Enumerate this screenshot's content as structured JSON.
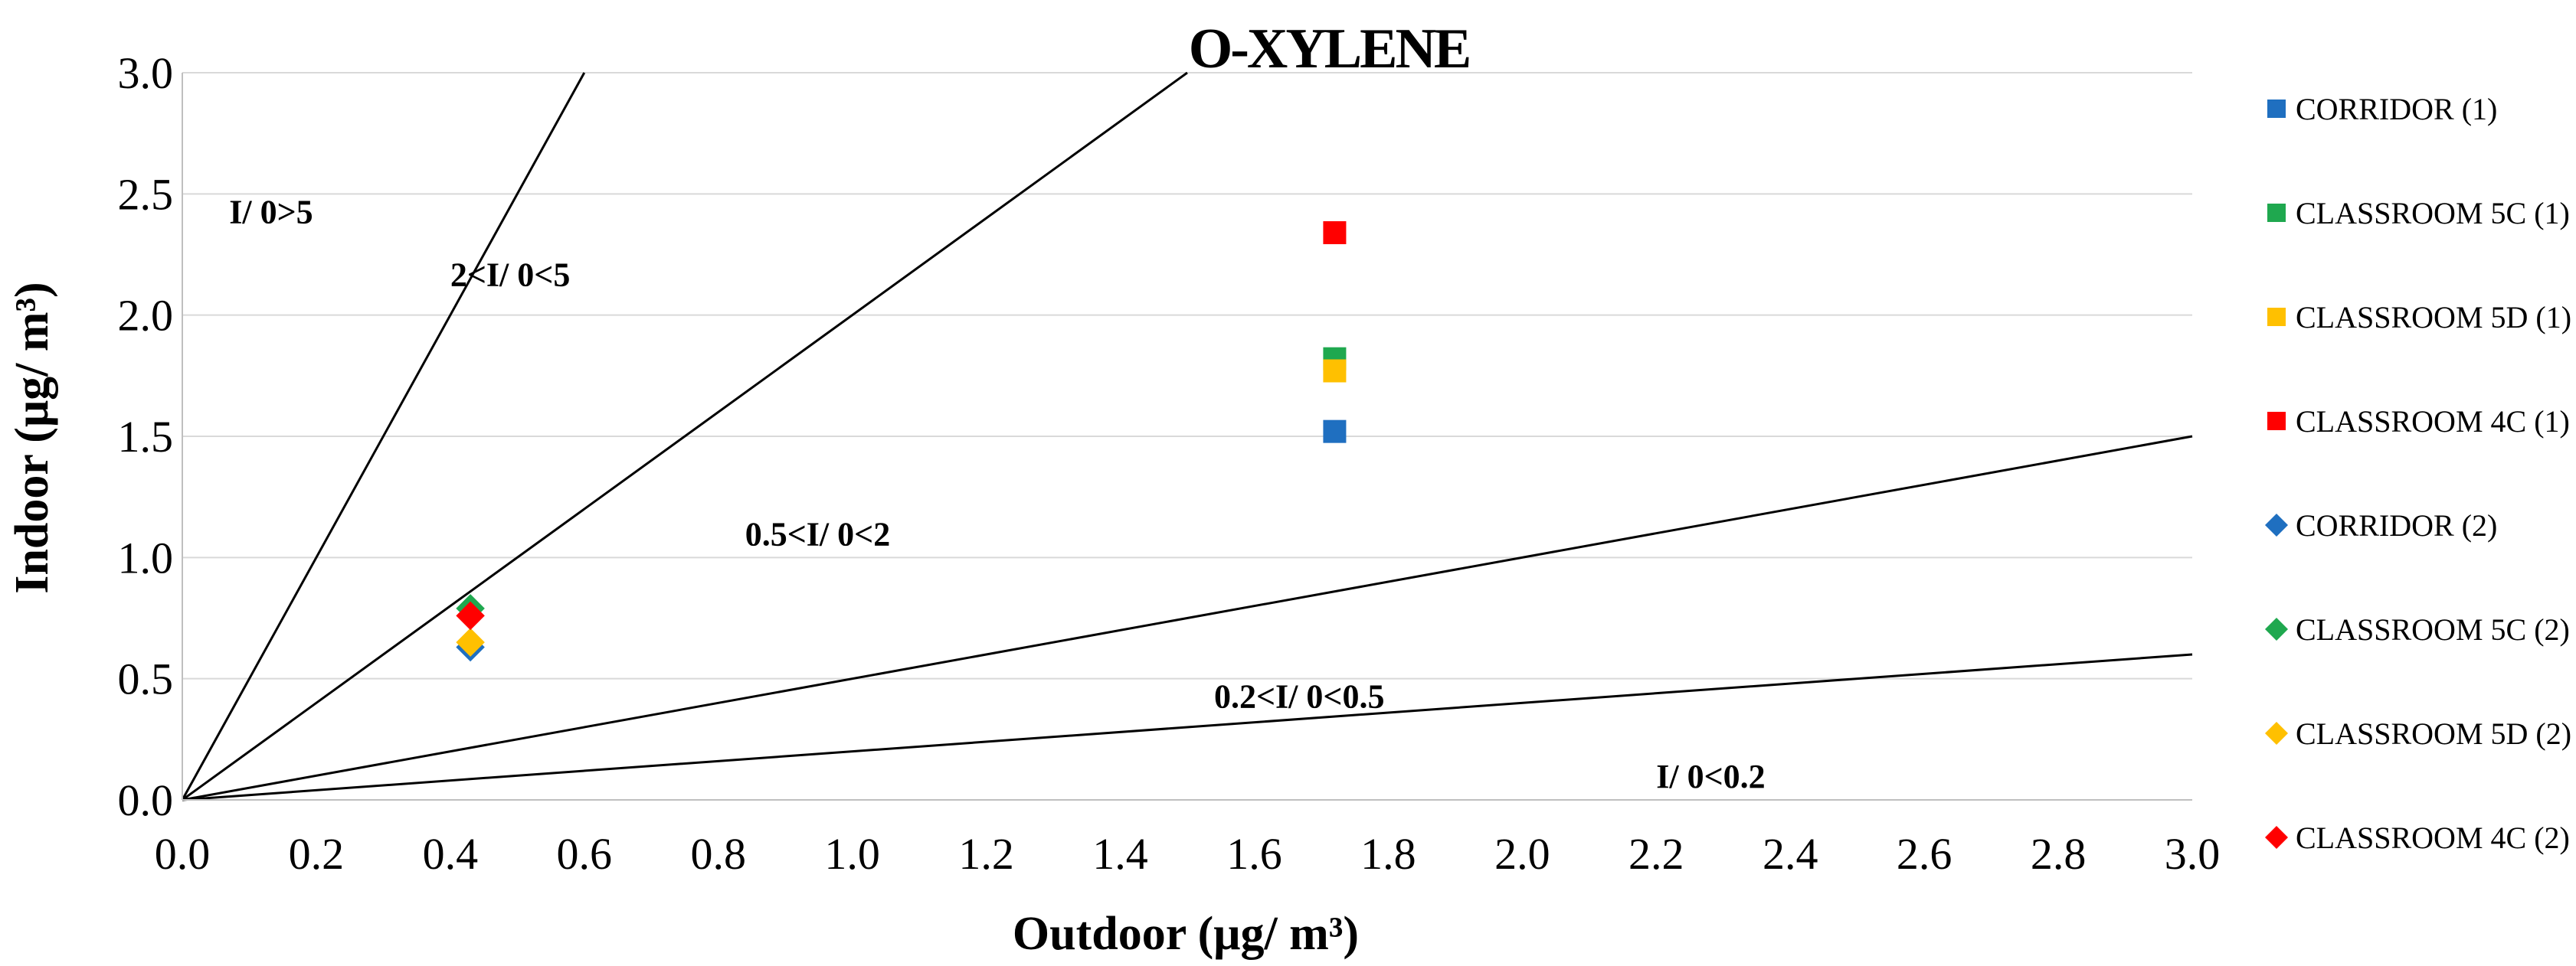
{
  "chart_data": {
    "type": "scatter",
    "title": "O-XYLENE",
    "xlabel": "Outdoor (μg/ m³)",
    "ylabel": "Indoor (μg/ m³)",
    "xlim": [
      0,
      3.0
    ],
    "ylim": [
      0,
      3.0
    ],
    "x_ticks": [
      "0.0",
      "0.2",
      "0.4",
      "0.6",
      "0.8",
      "1.0",
      "1.2",
      "1.4",
      "1.6",
      "1.8",
      "2.0",
      "2.2",
      "2.4",
      "2.6",
      "2.8",
      "3.0"
    ],
    "y_ticks": [
      "0.0",
      "0.5",
      "1.0",
      "1.5",
      "2.0",
      "2.5",
      "3.0"
    ],
    "grid": "horizontal",
    "legend_position": "right",
    "ratio_lines": [
      {
        "name": "ratio-5",
        "slope": 5
      },
      {
        "name": "ratio-2",
        "slope": 2
      },
      {
        "name": "ratio-0.5",
        "slope": 0.5
      },
      {
        "name": "ratio-0.2",
        "slope": 0.2
      }
    ],
    "regions": [
      {
        "label": "I/ 0>5",
        "x": 0.07,
        "y": 2.38
      },
      {
        "label": "2<I/ 0<5",
        "x": 0.4,
        "y": 2.12
      },
      {
        "label": "0.5<I/ 0<2",
        "x": 0.84,
        "y": 1.05
      },
      {
        "label": "0.2<I/ 0<0.5",
        "x": 1.54,
        "y": 0.38
      },
      {
        "label": "I/ 0<0.2",
        "x": 2.2,
        "y": 0.05
      }
    ],
    "series": [
      {
        "name": "CORRIDOR (1)",
        "marker": "square",
        "color": "#1F6FC0",
        "x": 1.72,
        "y": 1.52
      },
      {
        "name": "CLASSROOM 5C (1)",
        "marker": "square",
        "color": "#1FA84F",
        "x": 1.72,
        "y": 1.82
      },
      {
        "name": "CLASSROOM 5D (1)",
        "marker": "square",
        "color": "#FFC000",
        "x": 1.72,
        "y": 1.77
      },
      {
        "name": "CLASSROOM 4C (1)",
        "marker": "square",
        "color": "#FF0000",
        "x": 1.72,
        "y": 2.34
      },
      {
        "name": "CORRIDOR (2)",
        "marker": "diamond",
        "color": "#1F6FC0",
        "x": 0.43,
        "y": 0.63
      },
      {
        "name": "CLASSROOM 5C (2)",
        "marker": "diamond",
        "color": "#1FA84F",
        "x": 0.43,
        "y": 0.79
      },
      {
        "name": "CLASSROOM 5D (2)",
        "marker": "diamond",
        "color": "#FFC000",
        "x": 0.43,
        "y": 0.65
      },
      {
        "name": "CLASSROOM 4C (2)",
        "marker": "diamond",
        "color": "#FF0000",
        "x": 0.43,
        "y": 0.76
      }
    ]
  }
}
